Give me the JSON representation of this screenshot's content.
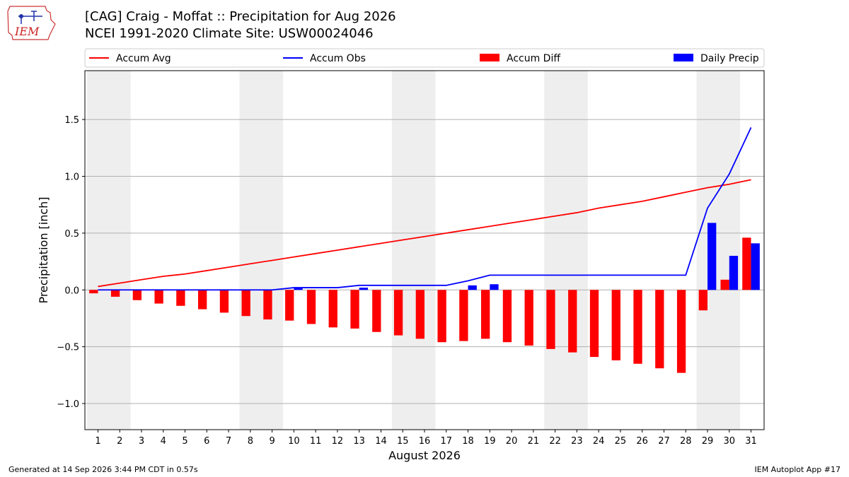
{
  "header": {
    "title_line1": "[CAG] Craig - Moffat :: Precipitation for Aug 2026",
    "title_line2": "NCEI 1991-2020 Climate Site: USW00024046"
  },
  "logo": {
    "text": "IEM"
  },
  "footer": {
    "left": "Generated at 14 Sep 2026 3:44 PM CDT in 0.57s",
    "right": "IEM Autoplot App #17"
  },
  "colors": {
    "accum_avg": "#ff0000",
    "accum_obs": "#0000ff",
    "accum_diff": "#ff0000",
    "daily_precip": "#0000ff",
    "weekend_shade": "#eeeeee",
    "grid": "#b0b0b0"
  },
  "chart_data": {
    "type": "bar",
    "xlabel": "August 2026",
    "ylabel": "Precipitation [inch]",
    "ylim": [
      -1.23,
      1.93
    ],
    "yticks": [
      -1.0,
      -0.5,
      0.0,
      0.5,
      1.0,
      1.5
    ],
    "ytick_labels": [
      "−1.0",
      "−0.5",
      "0.0",
      "0.5",
      "1.0",
      "1.5"
    ],
    "grid": "horizontal",
    "legend_position": "top",
    "categories": [
      1,
      2,
      3,
      4,
      5,
      6,
      7,
      8,
      9,
      10,
      11,
      12,
      13,
      14,
      15,
      16,
      17,
      18,
      19,
      20,
      21,
      22,
      23,
      24,
      25,
      26,
      27,
      28,
      29,
      30,
      31
    ],
    "shaded_weekends": [
      [
        1,
        2
      ],
      [
        8,
        9
      ],
      [
        15,
        16
      ],
      [
        22,
        23
      ],
      [
        29,
        30
      ]
    ],
    "series": [
      {
        "name": "Accum Avg",
        "kind": "line",
        "values": [
          0.03,
          0.06,
          0.09,
          0.12,
          0.14,
          0.17,
          0.2,
          0.23,
          0.26,
          0.29,
          0.32,
          0.35,
          0.38,
          0.41,
          0.44,
          0.47,
          0.5,
          0.53,
          0.56,
          0.59,
          0.62,
          0.65,
          0.68,
          0.72,
          0.75,
          0.78,
          0.82,
          0.86,
          0.9,
          0.93,
          0.97
        ]
      },
      {
        "name": "Accum Obs",
        "kind": "line",
        "values": [
          0.0,
          0.0,
          0.0,
          0.0,
          0.0,
          0.0,
          0.0,
          0.0,
          0.0,
          0.02,
          0.02,
          0.02,
          0.04,
          0.04,
          0.04,
          0.04,
          0.04,
          0.08,
          0.13,
          0.13,
          0.13,
          0.13,
          0.13,
          0.13,
          0.13,
          0.13,
          0.13,
          0.13,
          0.72,
          1.02,
          1.43
        ]
      },
      {
        "name": "Accum Diff",
        "kind": "bar",
        "values": [
          -0.03,
          -0.06,
          -0.09,
          -0.12,
          -0.14,
          -0.17,
          -0.2,
          -0.23,
          -0.26,
          -0.27,
          -0.3,
          -0.33,
          -0.34,
          -0.37,
          -0.4,
          -0.43,
          -0.46,
          -0.45,
          -0.43,
          -0.46,
          -0.49,
          -0.52,
          -0.55,
          -0.59,
          -0.62,
          -0.65,
          -0.69,
          -0.73,
          -0.18,
          0.09,
          0.46
        ]
      },
      {
        "name": "Daily Precip",
        "kind": "bar",
        "values": [
          0,
          0,
          0,
          0,
          0,
          0,
          0,
          0,
          0,
          0.02,
          0,
          0,
          0.02,
          0,
          0,
          0,
          0,
          0.04,
          0.05,
          0,
          0,
          0,
          0,
          0,
          0,
          0,
          0,
          0,
          0.59,
          0.3,
          0.41
        ]
      }
    ]
  }
}
